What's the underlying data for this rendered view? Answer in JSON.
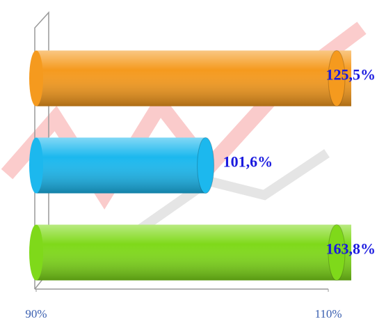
{
  "chart_data": {
    "type": "bar",
    "orientation": "horizontal",
    "categories": [
      null,
      null,
      null
    ],
    "values": [
      125.5,
      101.6,
      163.8
    ],
    "value_labels": [
      "125,5%",
      "101,6%",
      "163,8%"
    ],
    "colors": [
      "#f59a1e",
      "#1cb8ee",
      "#7fd91a"
    ],
    "xlim": [
      90,
      110
    ],
    "xticks": [
      {
        "value": 90,
        "label": "90%"
      },
      {
        "value": 110,
        "label": "110%"
      }
    ]
  }
}
